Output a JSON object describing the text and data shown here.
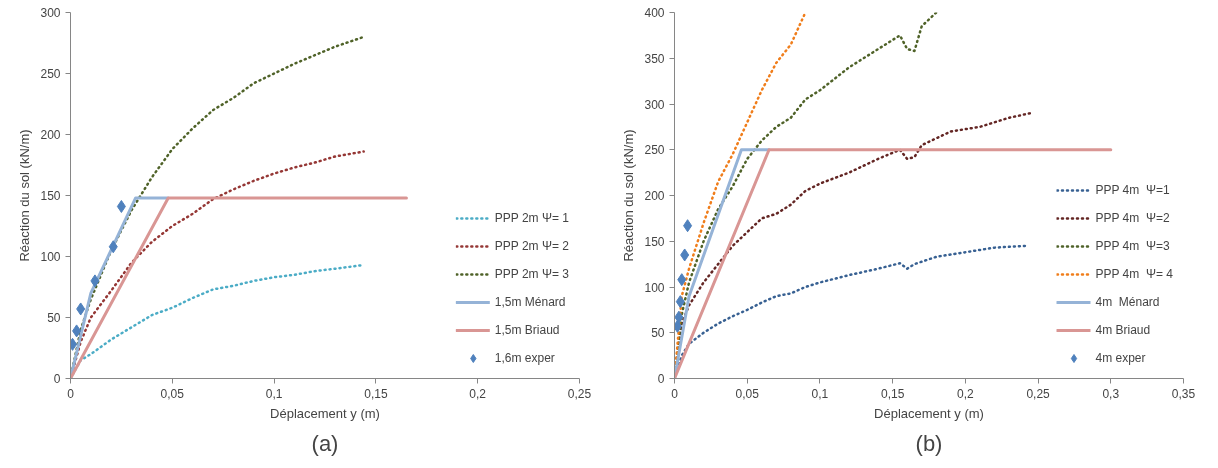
{
  "chart_data": [
    {
      "type": "line",
      "xlabel": "Déplacement y (m)",
      "ylabel": "Réaction du sol (kN/m)",
      "annotations": [
        "(a)"
      ],
      "xlim": [
        0,
        0.25
      ],
      "xticks": [
        0,
        {
          "value": 0.05,
          "label": "0,05"
        },
        {
          "value": 0.1,
          "label": "0,1"
        },
        {
          "value": 0.15,
          "label": "0,15"
        },
        {
          "value": 0.2,
          "label": "0,2"
        },
        {
          "value": 0.25,
          "label": "0,25"
        }
      ],
      "ylim": [
        0,
        300
      ],
      "yticks": [
        0,
        50,
        100,
        150,
        200,
        250,
        300
      ],
      "grid": false,
      "legend": "bottom right",
      "series": [
        {
          "name": "PPP 2m Ψ= 1",
          "color": "#4bacc6",
          "line_style": "dotted",
          "x": [
            0,
            0.005,
            0.01,
            0.02,
            0.03,
            0.04,
            0.05,
            0.06,
            0.07,
            0.08,
            0.09,
            0.1,
            0.11,
            0.12,
            0.13,
            0.144
          ],
          "values": [
            0,
            15,
            20,
            32,
            42,
            52,
            58,
            66,
            73,
            76,
            80,
            83,
            85,
            88,
            90,
            93
          ]
        },
        {
          "name": "PPP 2m Ψ= 2",
          "color": "#953735",
          "line_style": "dotted",
          "x": [
            0,
            0.005,
            0.01,
            0.02,
            0.03,
            0.04,
            0.05,
            0.06,
            0.07,
            0.08,
            0.09,
            0.1,
            0.11,
            0.12,
            0.13,
            0.144
          ],
          "values": [
            0,
            30,
            50,
            72,
            95,
            112,
            125,
            135,
            147,
            155,
            162,
            168,
            173,
            177,
            182,
            186
          ]
        },
        {
          "name": "PPP 2m Ψ= 3",
          "color": "#4f6228",
          "line_style": "dotted",
          "x": [
            0,
            0.005,
            0.01,
            0.02,
            0.03,
            0.04,
            0.05,
            0.06,
            0.07,
            0.08,
            0.09,
            0.1,
            0.11,
            0.12,
            0.13,
            0.144
          ],
          "values": [
            0,
            40,
            65,
            105,
            138,
            165,
            188,
            205,
            220,
            230,
            242,
            250,
            258,
            265,
            272,
            280
          ]
        },
        {
          "name": "1,5m Ménard",
          "color": "#95b3d7",
          "line_style": "solid",
          "x": [
            0,
            0.01,
            0.032,
            0.048
          ],
          "values": [
            0,
            70,
            148,
            148
          ]
        },
        {
          "name": "1,5m Briaud",
          "color": "#d99694",
          "line_style": "solid",
          "x": [
            0,
            0.048,
            0.165
          ],
          "values": [
            0,
            148,
            148
          ]
        },
        {
          "name": "1,6m exper",
          "type": "scatter",
          "marker": "diamond",
          "color": "#4f81bd",
          "x": [
            0.001,
            0.003,
            0.005,
            0.012,
            0.021,
            0.025
          ],
          "values": [
            28,
            39,
            57,
            80,
            108,
            141
          ]
        }
      ]
    },
    {
      "type": "line",
      "xlabel": "Déplacement y (m)",
      "ylabel": "Réaction du sol (kN/m)",
      "annotations": [
        "(b)"
      ],
      "xlim": [
        0,
        0.35
      ],
      "xticks": [
        0,
        {
          "value": 0.05,
          "label": "0,05"
        },
        {
          "value": 0.1,
          "label": "0,1"
        },
        {
          "value": 0.15,
          "label": "0,15"
        },
        {
          "value": 0.2,
          "label": "0,2"
        },
        {
          "value": 0.25,
          "label": "0,25"
        },
        {
          "value": 0.3,
          "label": "0,3"
        },
        {
          "value": 0.35,
          "label": "0,35"
        }
      ],
      "ylim": [
        0,
        400
      ],
      "yticks": [
        0,
        50,
        100,
        150,
        200,
        250,
        300,
        350,
        400
      ],
      "grid": false,
      "legend": "bottom right",
      "series": [
        {
          "name": "PPP 4m  Ψ=1",
          "color": "#376092",
          "line_style": "dotted",
          "x": [
            0,
            0.005,
            0.01,
            0.02,
            0.03,
            0.04,
            0.05,
            0.06,
            0.07,
            0.08,
            0.09,
            0.1,
            0.12,
            0.14,
            0.155,
            0.16,
            0.165,
            0.18,
            0.2,
            0.22,
            0.242
          ],
          "values": [
            0,
            25,
            38,
            50,
            60,
            68,
            75,
            83,
            90,
            93,
            100,
            105,
            113,
            120,
            126,
            120,
            125,
            133,
            138,
            143,
            145
          ]
        },
        {
          "name": "PPP 4m  Ψ=2",
          "color": "#632523",
          "line_style": "dotted",
          "x": [
            0,
            0.005,
            0.01,
            0.02,
            0.03,
            0.04,
            0.05,
            0.06,
            0.07,
            0.08,
            0.09,
            0.1,
            0.12,
            0.14,
            0.155,
            0.16,
            0.165,
            0.17,
            0.19,
            0.21,
            0.23,
            0.245
          ],
          "values": [
            0,
            60,
            80,
            105,
            125,
            145,
            160,
            175,
            180,
            190,
            205,
            213,
            225,
            240,
            250,
            240,
            242,
            255,
            270,
            275,
            285,
            290
          ]
        },
        {
          "name": "PPP 4m  Ψ=3",
          "color": "#4f6228",
          "line_style": "dotted",
          "x": [
            0,
            0.005,
            0.01,
            0.02,
            0.03,
            0.04,
            0.05,
            0.06,
            0.07,
            0.08,
            0.09,
            0.1,
            0.12,
            0.14,
            0.155,
            0.16,
            0.165,
            0.17,
            0.18
          ],
          "values": [
            0,
            70,
            105,
            150,
            185,
            210,
            240,
            260,
            275,
            285,
            305,
            315,
            340,
            360,
            375,
            360,
            358,
            385,
            400
          ]
        },
        {
          "name": "PPP 4m  Ψ= 4",
          "color": "#f07d1a",
          "line_style": "dotted",
          "x": [
            0,
            0.005,
            0.01,
            0.02,
            0.03,
            0.04,
            0.05,
            0.06,
            0.07,
            0.08,
            0.09
          ],
          "values": [
            0,
            90,
            120,
            170,
            215,
            245,
            280,
            315,
            345,
            365,
            400
          ]
        },
        {
          "name": "4m  Ménard",
          "color": "#95b3d7",
          "line_style": "solid",
          "x": [
            0,
            0.01,
            0.046,
            0.065
          ],
          "values": [
            0,
            90,
            250,
            250
          ]
        },
        {
          "name": "4m Briaud",
          "color": "#d99694",
          "line_style": "solid",
          "x": [
            0,
            0.065,
            0.3
          ],
          "values": [
            0,
            250,
            250
          ]
        },
        {
          "name": "4m exper",
          "type": "scatter",
          "marker": "diamond",
          "color": "#4f81bd",
          "x": [
            0.002,
            0.003,
            0.004,
            0.005,
            0.007,
            0.009
          ],
          "values": [
            57,
            67,
            84,
            108,
            135,
            167
          ]
        }
      ]
    }
  ]
}
